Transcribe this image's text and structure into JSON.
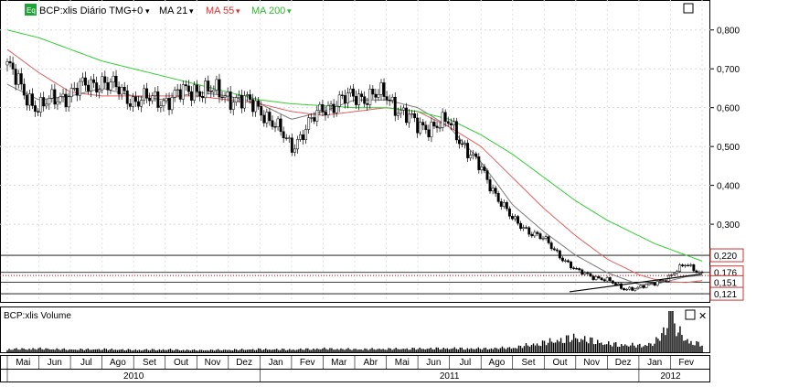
{
  "toolbar": {
    "eq_label": "Eq",
    "symbol_label": "BCP:xlis Diário TMG+0",
    "ma21_label": "MA 21",
    "ma55_label": "MA 55",
    "ma200_label": "MA 200",
    "dropdown_glyph": "▾",
    "maximize_glyph": "□",
    "close_glyph": "✕"
  },
  "colors": {
    "candle": "#000000",
    "ma21": "#7a7a7a",
    "ma55": "#e06060",
    "ma200": "#33cc33",
    "level_line": "#000000",
    "dotted_level": "#cc0000",
    "label_border": "#cc3333",
    "volume": "#000000",
    "eq_badge": "#22a33a"
  },
  "chart_data": {
    "type": "line",
    "price_axis": {
      "ticks": [
        "0,800",
        "0,700",
        "0,600",
        "0,500",
        "0,400",
        "0,300"
      ],
      "ylim": [
        0.1,
        0.83
      ]
    },
    "month_labels": [
      "Mai",
      "Jun",
      "Jul",
      "Ago",
      "Set",
      "Out",
      "Nov",
      "Dez",
      "Jan",
      "Fev",
      "Mar",
      "Abr",
      "Mai",
      "Jun",
      "Jul",
      "Ago",
      "Set",
      "Out",
      "Nov",
      "Dez",
      "Jan",
      "Fev"
    ],
    "year_labels": [
      "2010",
      "2011",
      "2012"
    ],
    "series": [
      {
        "name": "BCP:xlis Diário TMG+0",
        "x": [
          0,
          0.5,
          1,
          2,
          3,
          4,
          5,
          6,
          7,
          8,
          9,
          10,
          11,
          12,
          13,
          14,
          15,
          16,
          17,
          18,
          19,
          19.5,
          20,
          20.5,
          21,
          21.5,
          22
        ],
        "values": [
          0.71,
          0.64,
          0.6,
          0.64,
          0.67,
          0.62,
          0.62,
          0.65,
          0.63,
          0.6,
          0.5,
          0.6,
          0.63,
          0.63,
          0.55,
          0.56,
          0.44,
          0.31,
          0.26,
          0.18,
          0.155,
          0.135,
          0.135,
          0.15,
          0.165,
          0.2,
          0.172
        ]
      },
      {
        "name": "MA 21",
        "x": [
          0,
          1,
          2,
          3,
          4,
          5,
          6,
          7,
          8,
          9,
          10,
          11,
          12,
          13,
          14,
          15,
          16,
          17,
          18,
          19,
          20,
          20.5,
          21,
          21.5,
          22
        ],
        "values": [
          0.66,
          0.62,
          0.63,
          0.65,
          0.63,
          0.62,
          0.64,
          0.63,
          0.61,
          0.57,
          0.59,
          0.62,
          0.62,
          0.6,
          0.55,
          0.46,
          0.35,
          0.28,
          0.22,
          0.175,
          0.145,
          0.145,
          0.155,
          0.165,
          0.168
        ]
      },
      {
        "name": "MA 55",
        "x": [
          0,
          1,
          2,
          3,
          4,
          5,
          6,
          7,
          8,
          9,
          10,
          11,
          12,
          13,
          14,
          15,
          16,
          17,
          18,
          19,
          20,
          20.5,
          21,
          21.5,
          22
        ],
        "values": [
          0.75,
          0.69,
          0.64,
          0.63,
          0.63,
          0.63,
          0.63,
          0.62,
          0.61,
          0.59,
          0.58,
          0.59,
          0.6,
          0.59,
          0.55,
          0.5,
          0.42,
          0.34,
          0.27,
          0.21,
          0.17,
          0.158,
          0.152,
          0.15,
          0.155
        ]
      },
      {
        "name": "MA 200",
        "x": [
          0,
          1,
          2,
          3,
          4,
          5,
          6,
          7,
          8,
          9,
          10,
          11,
          12,
          13,
          14,
          15,
          16,
          17,
          18,
          19,
          20,
          20.5,
          21,
          21.5,
          22
        ],
        "values": [
          0.8,
          0.78,
          0.75,
          0.72,
          0.7,
          0.68,
          0.66,
          0.64,
          0.62,
          0.61,
          0.605,
          0.6,
          0.6,
          0.59,
          0.57,
          0.53,
          0.48,
          0.42,
          0.36,
          0.31,
          0.27,
          0.25,
          0.235,
          0.22,
          0.205
        ]
      }
    ],
    "levels": [
      {
        "value": 0.22,
        "label": "0,220",
        "style": "solid"
      },
      {
        "value": 0.176,
        "label": "0,176",
        "style": "solid"
      },
      {
        "value": 0.168,
        "label": "",
        "style": "dotted"
      },
      {
        "value": 0.151,
        "label": "0,151",
        "style": "solid"
      },
      {
        "value": 0.121,
        "label": "0,121",
        "style": "solid"
      }
    ],
    "trendline": {
      "x": [
        17.8,
        22
      ],
      "values": [
        0.126,
        0.172
      ]
    },
    "volume": {
      "label": "BCP:xlis Volume",
      "x": [
        0,
        1,
        2,
        3,
        4,
        5,
        6,
        7,
        8,
        9,
        10,
        11,
        12,
        13,
        14,
        15,
        16,
        17,
        18,
        19,
        20,
        20.5,
        21,
        21.5,
        22
      ],
      "values": [
        0.1,
        0.12,
        0.09,
        0.1,
        0.08,
        0.09,
        0.07,
        0.08,
        0.1,
        0.09,
        0.12,
        0.1,
        0.11,
        0.12,
        0.13,
        0.12,
        0.15,
        0.32,
        0.5,
        0.28,
        0.22,
        0.3,
        1.0,
        0.4,
        0.25
      ],
      "ylim": [
        0,
        1
      ]
    }
  }
}
